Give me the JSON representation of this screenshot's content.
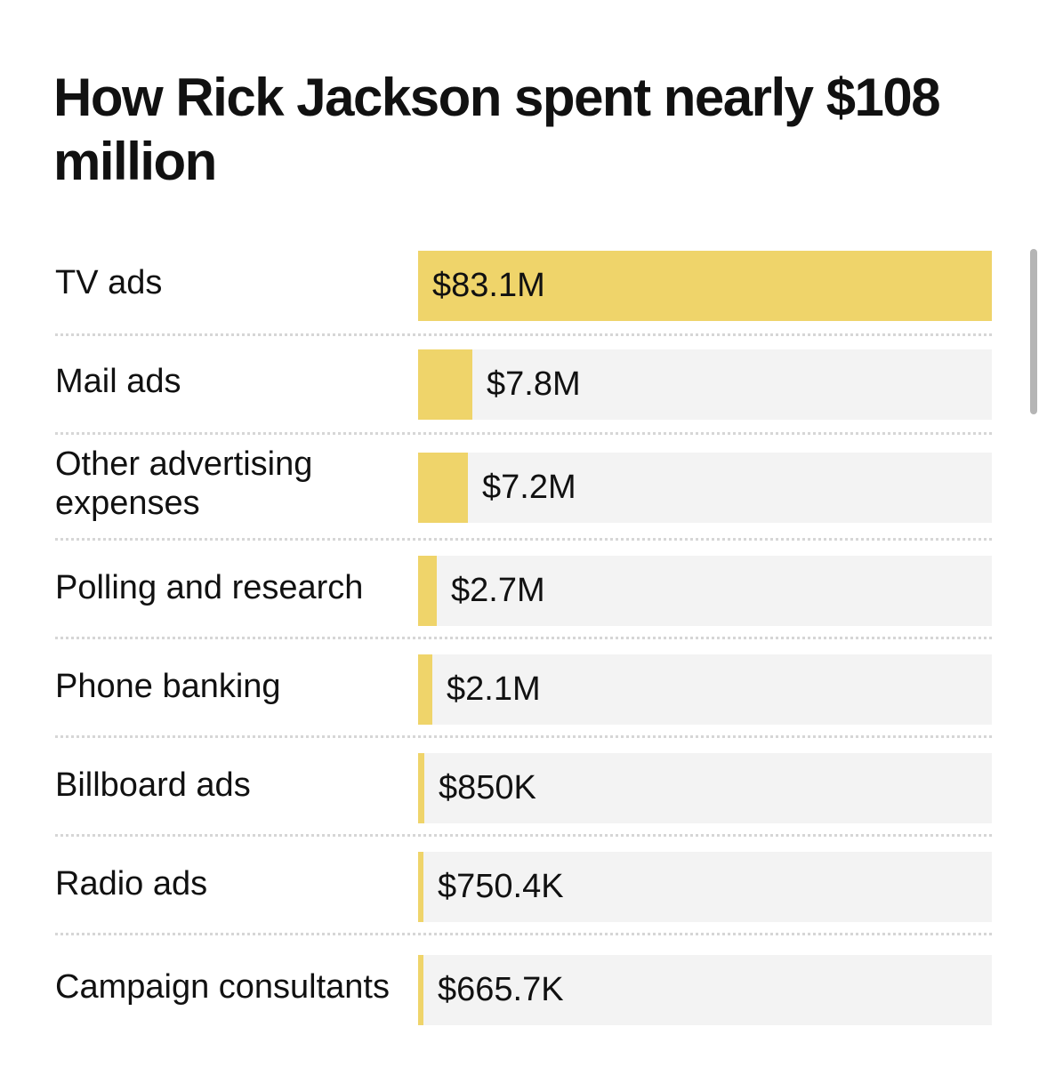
{
  "chart_data": {
    "type": "bar",
    "orientation": "horizontal",
    "title": "How Rick Jackson spent nearly $108 million",
    "categories": [
      "TV ads",
      "Mail ads",
      "Other advertising expenses",
      "Polling and research",
      "Phone banking",
      "Billboard ads",
      "Radio ads",
      "Campaign consultants"
    ],
    "values": [
      83100000,
      7800000,
      7200000,
      2700000,
      2100000,
      850000,
      750400,
      665700
    ],
    "value_labels": [
      "$83.1M",
      "$7.8M",
      "$7.2M",
      "$2.7M",
      "$2.1M",
      "$850K",
      "$750.4K",
      "$665.7K"
    ],
    "xlim": [
      0,
      83100000
    ],
    "grid": false,
    "colors": {
      "bar": "#efd46a",
      "track": "#f3f3f3",
      "divider": "#d6d6d6",
      "text": "#111111"
    }
  }
}
